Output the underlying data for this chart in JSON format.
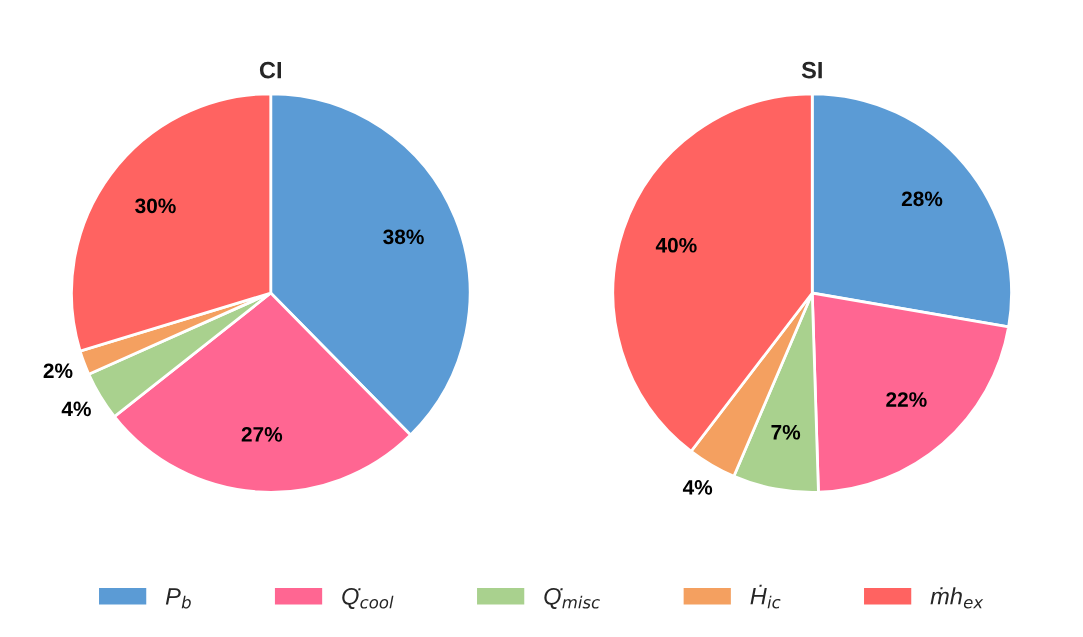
{
  "chart_data": [
    {
      "type": "pie",
      "title": "CI",
      "categories": [
        "P$_{b}$",
        "Q̇$_{cool}$",
        "Q̇$_{misc}$",
        "Ḣ$_{ic}$",
        "ṁh$_{ex}$"
      ],
      "values": [
        38,
        27,
        4,
        2,
        30
      ],
      "value_labels": [
        "38%",
        "27%",
        "4%",
        "2%",
        "30%"
      ],
      "colors": [
        "#5b9bd5",
        "#ff6692",
        "#a9d18e",
        "#f4a060",
        "#ff6361"
      ],
      "legend": "bottom"
    },
    {
      "type": "pie",
      "title": "SI",
      "categories": [
        null,
        null,
        null,
        null,
        null
      ],
      "values": [
        28,
        22,
        7,
        4,
        40
      ],
      "value_labels": [
        "28%",
        "22%",
        "7%",
        "4%",
        "40%"
      ],
      "colors": [
        "#5b9bd5",
        "#ff6692",
        "#a9d18e",
        "#f4a060",
        "#ff6361"
      ]
    }
  ]
}
